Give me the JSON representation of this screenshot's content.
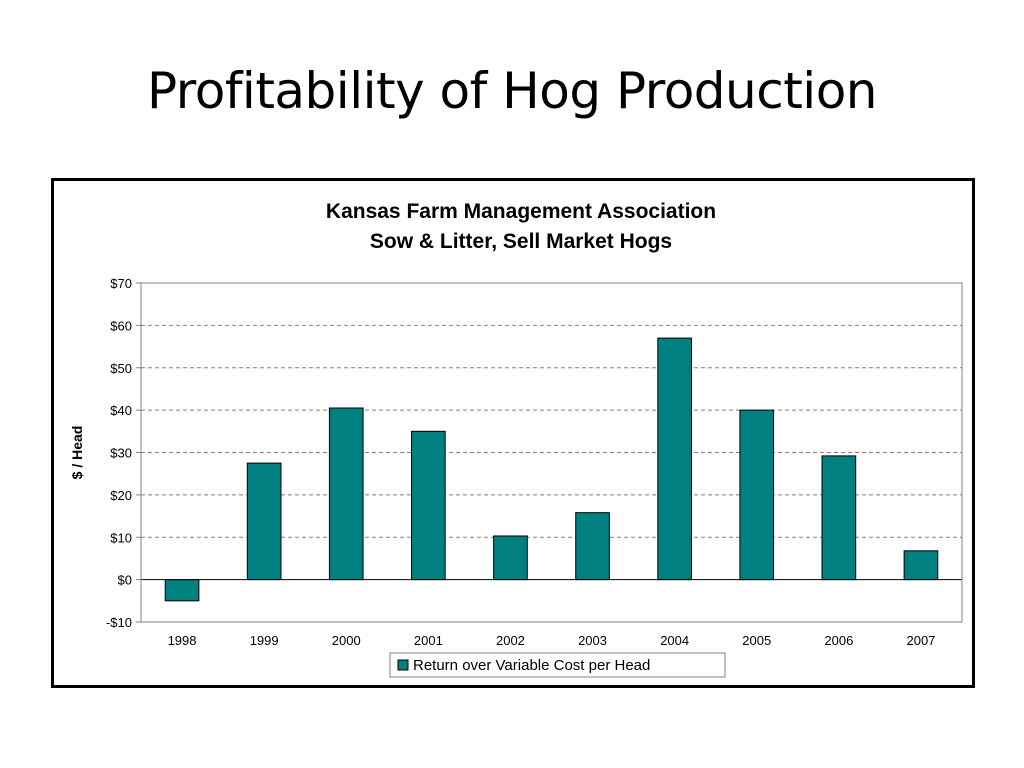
{
  "slide": {
    "title": "Profitability of Hog Production"
  },
  "chart_data": {
    "type": "bar",
    "title_lines": [
      "Kansas Farm Management Association",
      "Sow & Litter, Sell Market Hogs"
    ],
    "xlabel": "",
    "ylabel": "$ / Head",
    "categories": [
      "1998",
      "1999",
      "2000",
      "2001",
      "2002",
      "2003",
      "2004",
      "2005",
      "2006",
      "2007"
    ],
    "series": [
      {
        "name": "Return over Variable Cost per Head",
        "color": "#008080",
        "values": [
          -5,
          27.5,
          40.5,
          35,
          10.3,
          15.8,
          57,
          40,
          29.2,
          6.8
        ]
      }
    ],
    "ylim": [
      -10,
      70
    ],
    "yticks": [
      -10,
      0,
      10,
      20,
      30,
      40,
      50,
      60,
      70
    ],
    "ytick_labels": [
      "-$10",
      "$0",
      "$10",
      "$20",
      "$30",
      "$40",
      "$50",
      "$60",
      "$70"
    ],
    "grid": true,
    "legend_position": "bottom"
  }
}
